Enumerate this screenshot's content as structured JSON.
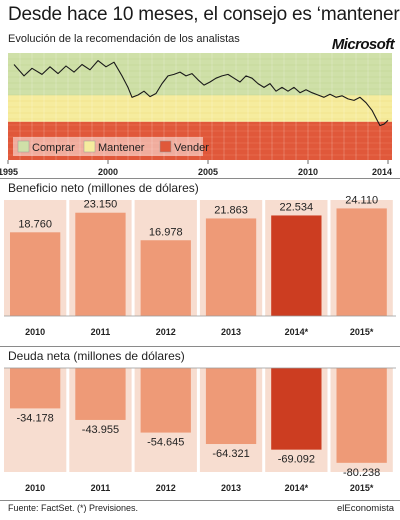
{
  "title": "Desde hace 10 meses, el consejo es ‘mantener’",
  "subtitle": "Evolución de la recomendación de los analistas",
  "brand_logo": "Microsoft",
  "colors": {
    "comprar": "#cfe0a8",
    "mantener": "#f6ec9e",
    "vender": "#e0583a",
    "bar": "#ee9a77",
    "bar_highlight": "#cc3d21",
    "panel": "#f7ddd0"
  },
  "chart_data": [
    {
      "type": "line",
      "title": "Evolución de la recomendación de los analistas",
      "x_ticks": [
        "1995",
        "2000",
        "2005",
        "2010",
        "2014"
      ],
      "xlim": [
        1995,
        2014.2
      ],
      "ylim": [
        1.0,
        2.4
      ],
      "zones": [
        {
          "name": "Comprar",
          "from": 1.0,
          "to": 1.55
        },
        {
          "name": "Mantener",
          "from": 1.55,
          "to": 1.9
        },
        {
          "name": "Vender",
          "from": 1.9,
          "to": 2.4
        }
      ],
      "legend": [
        "Comprar",
        "Mantener",
        "Vender"
      ],
      "legend_position": "bottom-left",
      "x": [
        1995.3,
        1995.8,
        1996.2,
        1996.7,
        1997.1,
        1997.5,
        1997.9,
        1998.3,
        1998.7,
        1999.1,
        1999.5,
        1999.9,
        2000.3,
        2000.7,
        2001.0,
        2001.2,
        2001.5,
        2001.8,
        2002.1,
        2002.4,
        2002.7,
        2003.0,
        2003.3,
        2003.6,
        2003.9,
        2004.2,
        2004.5,
        2004.8,
        2005.1,
        2005.4,
        2005.7,
        2006.0,
        2006.3,
        2006.6,
        2006.9,
        2007.2,
        2007.5,
        2007.8,
        2008.1,
        2008.4,
        2008.7,
        2009.0,
        2009.3,
        2009.6,
        2009.9,
        2010.2,
        2010.5,
        2010.8,
        2011.1,
        2011.4,
        2011.7,
        2012.0,
        2012.3,
        2012.6,
        2012.9,
        2013.2,
        2013.4,
        2013.6,
        2013.8,
        2014.0
      ],
      "y": [
        1.15,
        1.3,
        1.2,
        1.28,
        1.18,
        1.27,
        1.17,
        1.25,
        1.15,
        1.22,
        1.1,
        1.18,
        1.12,
        1.3,
        1.45,
        1.58,
        1.55,
        1.5,
        1.57,
        1.53,
        1.4,
        1.3,
        1.28,
        1.25,
        1.3,
        1.27,
        1.35,
        1.42,
        1.38,
        1.33,
        1.3,
        1.28,
        1.33,
        1.38,
        1.3,
        1.33,
        1.4,
        1.45,
        1.4,
        1.5,
        1.45,
        1.5,
        1.45,
        1.52,
        1.48,
        1.52,
        1.55,
        1.58,
        1.54,
        1.58,
        1.56,
        1.6,
        1.62,
        1.58,
        1.65,
        1.75,
        1.85,
        1.95,
        1.93,
        1.88
      ]
    },
    {
      "type": "bar",
      "title": "Beneficio neto (millones de dólares)",
      "categories": [
        "2010",
        "2011",
        "2012",
        "2013",
        "2014*",
        "2015*"
      ],
      "values": [
        18760,
        23150,
        16978,
        21863,
        22534,
        24110
      ],
      "value_labels": [
        "18.760",
        "23.150",
        "16.978",
        "21.863",
        "22.534",
        "24.110"
      ],
      "highlight": "2014*",
      "ylim": [
        0,
        26000
      ]
    },
    {
      "type": "bar",
      "title": "Deuda neta (millones de dólares)",
      "categories": [
        "2010",
        "2011",
        "2012",
        "2013",
        "2014*",
        "2015*"
      ],
      "values": [
        -34178,
        -43955,
        -54645,
        -64321,
        -69092,
        -80238
      ],
      "value_labels": [
        "-34.178",
        "-43.955",
        "-54.645",
        "-64.321",
        "-69.092",
        "-80.238"
      ],
      "highlight": "2014*",
      "ylim": [
        -88000,
        0
      ]
    }
  ],
  "footer": {
    "source": "Fuente: FactSet. (*) Previsiones.",
    "brand": "elEconomista"
  }
}
